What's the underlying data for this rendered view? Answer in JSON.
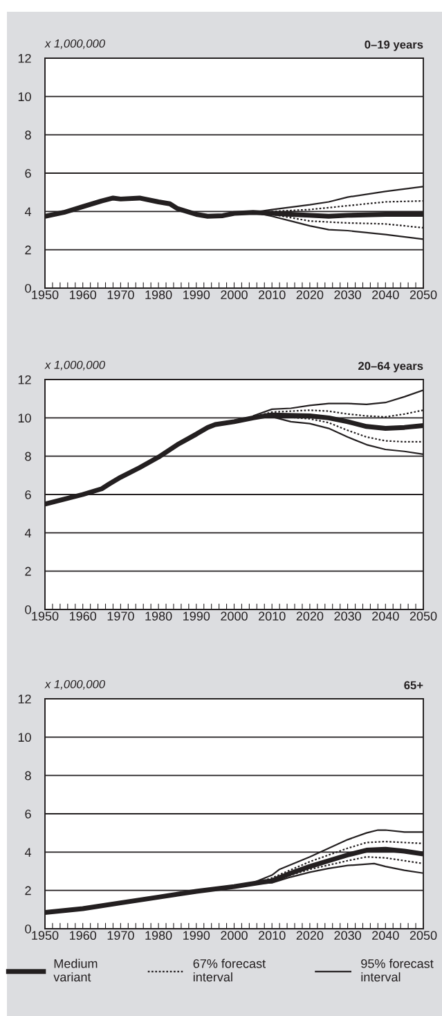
{
  "chart_data": [
    {
      "type": "line",
      "title": "0–19 years",
      "ylabel": "x 1,000,000",
      "xlim": [
        1950,
        2050
      ],
      "ylim": [
        0,
        12
      ],
      "yticks": [
        0,
        2,
        4,
        6,
        8,
        10,
        12
      ],
      "xticks": [
        1950,
        {
          "value": 1952,
          "label": null
        },
        {
          "value": 1954,
          "label": null
        },
        {
          "value": 1956,
          "label": null
        },
        {
          "value": 1958,
          "label": null
        },
        1960,
        {
          "value": 1962,
          "label": null
        },
        {
          "value": 1964,
          "label": null
        },
        {
          "value": 1966,
          "label": null
        },
        {
          "value": 1968,
          "label": null
        },
        1970,
        {
          "value": 1972,
          "label": null
        },
        {
          "value": 1974,
          "label": null
        },
        {
          "value": 1976,
          "label": null
        },
        {
          "value": 1978,
          "label": null
        },
        1980,
        {
          "value": 1982,
          "label": null
        },
        {
          "value": 1984,
          "label": null
        },
        {
          "value": 1986,
          "label": null
        },
        {
          "value": 1988,
          "label": null
        },
        1990,
        {
          "value": 1992,
          "label": null
        },
        {
          "value": 1994,
          "label": null
        },
        {
          "value": 1996,
          "label": null
        },
        {
          "value": 1998,
          "label": null
        },
        2000,
        {
          "value": 2002,
          "label": null
        },
        {
          "value": 2004,
          "label": null
        },
        {
          "value": 2006,
          "label": null
        },
        {
          "value": 2008,
          "label": null
        },
        2010,
        {
          "value": 2012,
          "label": null
        },
        {
          "value": 2014,
          "label": null
        },
        {
          "value": 2016,
          "label": null
        },
        {
          "value": 2018,
          "label": null
        },
        2020,
        {
          "value": 2022,
          "label": null
        },
        {
          "value": 2024,
          "label": null
        },
        {
          "value": 2026,
          "label": null
        },
        {
          "value": 2028,
          "label": null
        },
        2030,
        {
          "value": 2032,
          "label": null
        },
        {
          "value": 2034,
          "label": null
        },
        {
          "value": 2036,
          "label": null
        },
        {
          "value": 2038,
          "label": null
        },
        2040,
        {
          "value": 2042,
          "label": null
        },
        {
          "value": 2044,
          "label": null
        },
        {
          "value": 2046,
          "label": null
        },
        {
          "value": 2048,
          "label": null
        },
        2050
      ],
      "grid": "y",
      "legend": false,
      "series": [
        {
          "line_style": "solid",
          "color": "#231f20",
          "x": [
            1950,
            1955,
            1960,
            1965,
            1968,
            1970,
            1975,
            1980,
            1983,
            1985,
            1990,
            1993,
            1997,
            2000,
            2005,
            2010,
            2015,
            2020,
            2025,
            2030,
            2040,
            2050
          ],
          "values": [
            3.75,
            3.95,
            4.25,
            4.55,
            4.7,
            4.65,
            4.7,
            4.5,
            4.4,
            4.15,
            3.85,
            3.75,
            3.78,
            3.9,
            3.95,
            3.9,
            3.85,
            3.8,
            3.75,
            3.8,
            3.85,
            3.85
          ]
        },
        {
          "line_style": "dotted",
          "color": "#231f20",
          "x": [
            2005,
            2010,
            2020,
            2030,
            2040,
            2050
          ],
          "values": [
            3.95,
            4.0,
            4.1,
            4.3,
            4.5,
            4.55
          ]
        },
        {
          "line_style": "dotted",
          "color": "#231f20",
          "x": [
            2005,
            2010,
            2020,
            2030,
            2040,
            2050
          ],
          "values": [
            3.95,
            3.85,
            3.5,
            3.4,
            3.35,
            3.15
          ]
        },
        {
          "line_style": "solid",
          "color": "#231f20",
          "x": [
            2005,
            2010,
            2020,
            2025,
            2030,
            2040,
            2050
          ],
          "values": [
            3.95,
            4.1,
            4.35,
            4.5,
            4.75,
            5.05,
            5.3
          ]
        },
        {
          "line_style": "solid",
          "color": "#231f20",
          "x": [
            2005,
            2010,
            2015,
            2020,
            2025,
            2030,
            2040,
            2050
          ],
          "values": [
            3.95,
            3.75,
            3.5,
            3.25,
            3.05,
            3.0,
            2.8,
            2.55
          ]
        }
      ]
    },
    {
      "type": "line",
      "title": "20–64 years",
      "ylabel": "x 1,000,000",
      "xlim": [
        1950,
        2050
      ],
      "ylim": [
        0,
        12
      ],
      "yticks": [
        0,
        2,
        4,
        6,
        8,
        10,
        12
      ],
      "xticks": [
        1950,
        {
          "value": 1952,
          "label": null
        },
        {
          "value": 1954,
          "label": null
        },
        {
          "value": 1956,
          "label": null
        },
        {
          "value": 1958,
          "label": null
        },
        1960,
        {
          "value": 1962,
          "label": null
        },
        {
          "value": 1964,
          "label": null
        },
        {
          "value": 1966,
          "label": null
        },
        {
          "value": 1968,
          "label": null
        },
        1970,
        {
          "value": 1972,
          "label": null
        },
        {
          "value": 1974,
          "label": null
        },
        {
          "value": 1976,
          "label": null
        },
        {
          "value": 1978,
          "label": null
        },
        1980,
        {
          "value": 1982,
          "label": null
        },
        {
          "value": 1984,
          "label": null
        },
        {
          "value": 1986,
          "label": null
        },
        {
          "value": 1988,
          "label": null
        },
        1990,
        {
          "value": 1992,
          "label": null
        },
        {
          "value": 1994,
          "label": null
        },
        {
          "value": 1996,
          "label": null
        },
        {
          "value": 1998,
          "label": null
        },
        2000,
        {
          "value": 2002,
          "label": null
        },
        {
          "value": 2004,
          "label": null
        },
        {
          "value": 2006,
          "label": null
        },
        {
          "value": 2008,
          "label": null
        },
        2010,
        {
          "value": 2012,
          "label": null
        },
        {
          "value": 2014,
          "label": null
        },
        {
          "value": 2016,
          "label": null
        },
        {
          "value": 2018,
          "label": null
        },
        2020,
        {
          "value": 2022,
          "label": null
        },
        {
          "value": 2024,
          "label": null
        },
        {
          "value": 2026,
          "label": null
        },
        {
          "value": 2028,
          "label": null
        },
        2030,
        {
          "value": 2032,
          "label": null
        },
        {
          "value": 2034,
          "label": null
        },
        {
          "value": 2036,
          "label": null
        },
        {
          "value": 2038,
          "label": null
        },
        2040,
        {
          "value": 2042,
          "label": null
        },
        {
          "value": 2044,
          "label": null
        },
        {
          "value": 2046,
          "label": null
        },
        {
          "value": 2048,
          "label": null
        },
        2050
      ],
      "grid": "y",
      "legend": false,
      "series": [
        {
          "line_style": "solid",
          "color": "#231f20",
          "x": [
            1950,
            1955,
            1960,
            1965,
            1967,
            1970,
            1975,
            1980,
            1985,
            1990,
            1993,
            1995,
            2000,
            2005,
            2008,
            2010,
            2020,
            2025,
            2030,
            2035,
            2040,
            2045,
            2050
          ],
          "values": [
            5.5,
            5.75,
            6.0,
            6.3,
            6.55,
            6.9,
            7.4,
            7.95,
            8.6,
            9.15,
            9.5,
            9.65,
            9.8,
            10.0,
            10.1,
            10.15,
            10.1,
            10.0,
            9.8,
            9.55,
            9.45,
            9.5,
            9.6
          ]
        },
        {
          "line_style": "dotted",
          "color": "#231f20",
          "x": [
            2005,
            2010,
            2020,
            2025,
            2030,
            2035,
            2040,
            2045,
            2050
          ],
          "values": [
            10.05,
            10.3,
            10.4,
            10.35,
            10.2,
            10.1,
            10.05,
            10.2,
            10.4
          ]
        },
        {
          "line_style": "dotted",
          "color": "#231f20",
          "x": [
            2005,
            2010,
            2020,
            2025,
            2030,
            2035,
            2040,
            2045,
            2050
          ],
          "values": [
            10.0,
            10.1,
            9.95,
            9.75,
            9.35,
            9.0,
            8.8,
            8.75,
            8.75
          ]
        },
        {
          "line_style": "solid",
          "color": "#231f20",
          "x": [
            2005,
            2010,
            2015,
            2020,
            2025,
            2030,
            2035,
            2040,
            2045,
            2050
          ],
          "values": [
            10.1,
            10.45,
            10.5,
            10.65,
            10.75,
            10.75,
            10.7,
            10.8,
            11.1,
            11.45
          ]
        },
        {
          "line_style": "solid",
          "color": "#231f20",
          "x": [
            2005,
            2010,
            2015,
            2020,
            2025,
            2030,
            2035,
            2040,
            2045,
            2050
          ],
          "values": [
            10.0,
            10.05,
            9.8,
            9.7,
            9.45,
            9.0,
            8.6,
            8.35,
            8.25,
            8.1
          ]
        }
      ]
    },
    {
      "type": "line",
      "title": "65+",
      "ylabel": "x 1,000,000",
      "xlim": [
        1950,
        2050
      ],
      "ylim": [
        0,
        12
      ],
      "yticks": [
        0,
        2,
        4,
        6,
        8,
        10,
        12
      ],
      "xticks": [
        1950,
        {
          "value": 1952,
          "label": null
        },
        {
          "value": 1954,
          "label": null
        },
        {
          "value": 1956,
          "label": null
        },
        {
          "value": 1958,
          "label": null
        },
        1960,
        {
          "value": 1962,
          "label": null
        },
        {
          "value": 1964,
          "label": null
        },
        {
          "value": 1966,
          "label": null
        },
        {
          "value": 1968,
          "label": null
        },
        1970,
        {
          "value": 1972,
          "label": null
        },
        {
          "value": 1974,
          "label": null
        },
        {
          "value": 1976,
          "label": null
        },
        {
          "value": 1978,
          "label": null
        },
        1980,
        {
          "value": 1982,
          "label": null
        },
        {
          "value": 1984,
          "label": null
        },
        {
          "value": 1986,
          "label": null
        },
        {
          "value": 1988,
          "label": null
        },
        1990,
        {
          "value": 1992,
          "label": null
        },
        {
          "value": 1994,
          "label": null
        },
        {
          "value": 1996,
          "label": null
        },
        {
          "value": 1998,
          "label": null
        },
        2000,
        {
          "value": 2002,
          "label": null
        },
        {
          "value": 2004,
          "label": null
        },
        {
          "value": 2006,
          "label": null
        },
        {
          "value": 2008,
          "label": null
        },
        2010,
        {
          "value": 2012,
          "label": null
        },
        {
          "value": 2014,
          "label": null
        },
        {
          "value": 2016,
          "label": null
        },
        {
          "value": 2018,
          "label": null
        },
        2020,
        {
          "value": 2022,
          "label": null
        },
        {
          "value": 2024,
          "label": null
        },
        {
          "value": 2026,
          "label": null
        },
        {
          "value": 2028,
          "label": null
        },
        2030,
        {
          "value": 2032,
          "label": null
        },
        {
          "value": 2034,
          "label": null
        },
        {
          "value": 2036,
          "label": null
        },
        {
          "value": 2038,
          "label": null
        },
        2040,
        {
          "value": 2042,
          "label": null
        },
        {
          "value": 2044,
          "label": null
        },
        {
          "value": 2046,
          "label": null
        },
        {
          "value": 2048,
          "label": null
        },
        2050
      ],
      "grid": "y",
      "legend": "bottom",
      "series": [
        {
          "name": "Medium\nvariant",
          "line_style": "solid",
          "color": "#231f20",
          "x": [
            1950,
            1960,
            1970,
            1980,
            1990,
            2000,
            2008,
            2010,
            2015,
            2020,
            2025,
            2030,
            2035,
            2040,
            2045,
            2050
          ],
          "values": [
            0.85,
            1.05,
            1.35,
            1.65,
            1.95,
            2.2,
            2.45,
            2.5,
            2.9,
            3.25,
            3.55,
            3.85,
            4.1,
            4.15,
            4.05,
            3.9
          ]
        },
        {
          "name": "67% forecast\ninterval",
          "line_style": "dotted",
          "color": "#231f20",
          "x": [
            2005,
            2010,
            2020,
            2030,
            2035,
            2040,
            2050
          ],
          "values": [
            2.35,
            2.65,
            3.5,
            4.2,
            4.5,
            4.55,
            4.45
          ]
        },
        {
          "line_style": "dotted",
          "color": "#231f20",
          "x": [
            2005,
            2010,
            2020,
            2030,
            2035,
            2040,
            2050
          ],
          "values": [
            2.35,
            2.5,
            3.1,
            3.55,
            3.75,
            3.7,
            3.4
          ]
        },
        {
          "name": "95% forecast\ninterval",
          "line_style": "solid",
          "color": "#231f20",
          "x": [
            2005,
            2010,
            2012,
            2020,
            2025,
            2030,
            2035,
            2038,
            2040,
            2045,
            2050
          ],
          "values": [
            2.4,
            2.8,
            3.1,
            3.75,
            4.2,
            4.65,
            5.0,
            5.15,
            5.15,
            5.05,
            5.05
          ]
        },
        {
          "line_style": "solid",
          "color": "#231f20",
          "x": [
            2005,
            2010,
            2015,
            2020,
            2025,
            2030,
            2037,
            2040,
            2045,
            2050
          ],
          "values": [
            2.35,
            2.4,
            2.7,
            2.95,
            3.15,
            3.3,
            3.4,
            3.25,
            3.05,
            2.9
          ]
        }
      ]
    }
  ]
}
